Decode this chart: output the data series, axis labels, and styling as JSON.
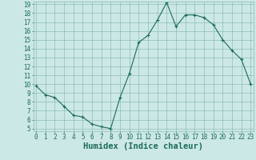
{
  "x": [
    0,
    1,
    2,
    3,
    4,
    5,
    6,
    7,
    8,
    9,
    10,
    11,
    12,
    13,
    14,
    15,
    16,
    17,
    18,
    19,
    20,
    21,
    22,
    23
  ],
  "y": [
    9.8,
    8.8,
    8.5,
    7.5,
    6.5,
    6.3,
    5.5,
    5.2,
    5.0,
    8.5,
    11.2,
    14.7,
    15.5,
    17.2,
    19.2,
    16.5,
    17.8,
    17.8,
    17.5,
    16.7,
    15.0,
    13.8,
    12.8,
    10.0
  ],
  "xlabel": "Humidex (Indice chaleur)",
  "ylim_min": 5,
  "ylim_max": 19,
  "xlim_min": 0,
  "xlim_max": 23,
  "yticks": [
    5,
    6,
    7,
    8,
    9,
    10,
    11,
    12,
    13,
    14,
    15,
    16,
    17,
    18,
    19
  ],
  "xticks": [
    0,
    1,
    2,
    3,
    4,
    5,
    6,
    7,
    8,
    9,
    10,
    11,
    12,
    13,
    14,
    15,
    16,
    17,
    18,
    19,
    20,
    21,
    22,
    23
  ],
  "line_color": "#1a6b5a",
  "marker": "+",
  "bg_color": "#cce8e6",
  "grid_color": "#8cbcb8",
  "tick_label_fontsize": 5.5,
  "xlabel_fontsize": 7.5
}
